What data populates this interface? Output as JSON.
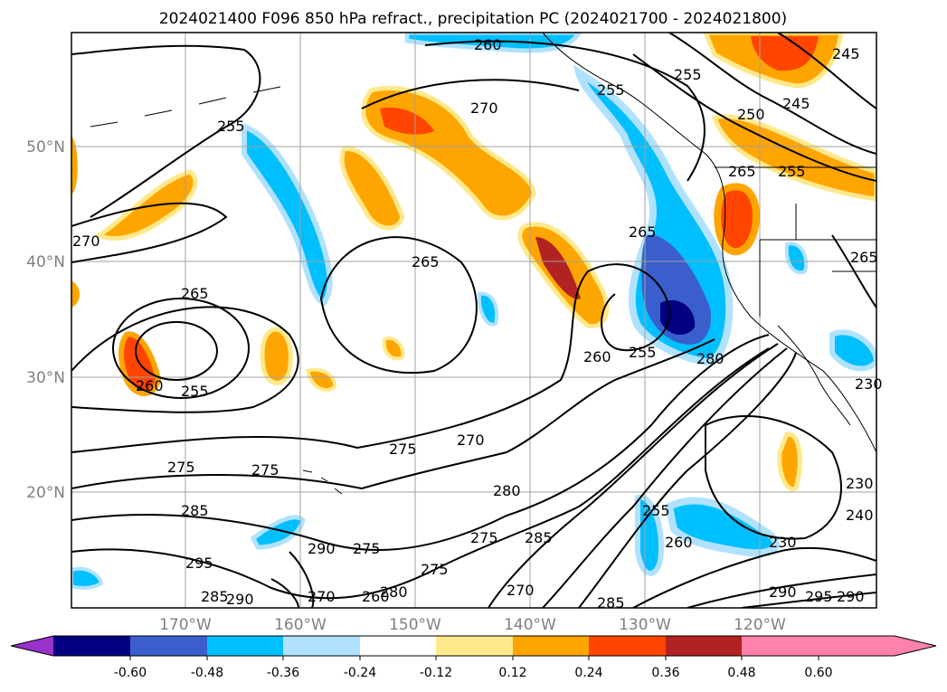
{
  "title": "2024021400 F096 850 hPa refract., precipitation PC (2024021700 - 2024021800)",
  "map": {
    "lat_labels": [
      "50°N",
      "40°N",
      "30°N",
      "20°N"
    ],
    "lon_labels": [
      "170°W",
      "160°W",
      "150°W",
      "140°W",
      "130°W",
      "120°W"
    ],
    "contour_labels": [
      "260",
      "270",
      "255",
      "240",
      "245",
      "250",
      "255",
      "260",
      "265",
      "270",
      "265",
      "265",
      "260",
      "255",
      "260",
      "265",
      "255",
      "280",
      "270",
      "275",
      "275",
      "275",
      "280",
      "275",
      "285",
      "230",
      "255",
      "260",
      "285",
      "290",
      "275",
      "275",
      "270",
      "285",
      "295",
      "290",
      "285",
      "270",
      "260",
      "280",
      "290",
      "295",
      "290",
      "230",
      "240",
      "250",
      "265",
      "265",
      "275",
      "285"
    ]
  },
  "colorbar": {
    "ticks": [
      "-0.60",
      "-0.48",
      "-0.36",
      "-0.24",
      "-0.12",
      "0.12",
      "0.24",
      "0.36",
      "0.48",
      "0.60"
    ],
    "colors": [
      "#9932cc",
      "#000080",
      "#3a5fcd",
      "#00bfff",
      "#b0e2ff",
      "#ffffff",
      "#ffe98c",
      "#ffa500",
      "#ff4500",
      "#b22222",
      "#ff82ab"
    ]
  }
}
